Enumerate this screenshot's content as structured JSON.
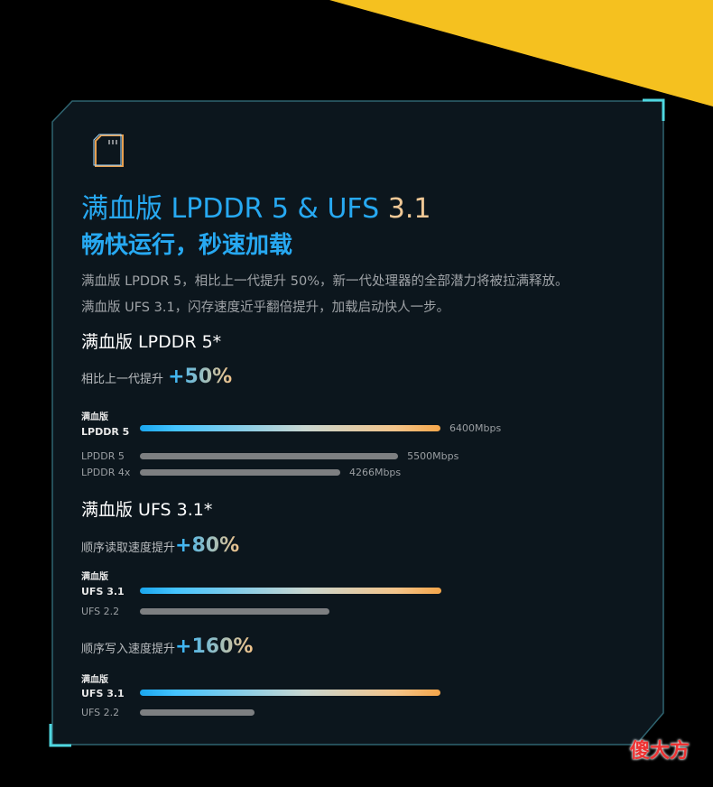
{
  "header": {
    "title": "满血版 LPDDR 5 & UFS",
    "title_version": "3.1",
    "subtitle": "畅快运行，秒速加载",
    "description": [
      "满血版 LPDDR 5，相比上一代提升 50%，新一代处理器的全部潜力将被拉满释放。",
      "满血版 UFS 3.1，闪存速度近乎翻倍提升，加载启动快人一步。"
    ]
  },
  "lpddr": {
    "title": "满血版 LPDDR 5*",
    "gain_label": "相比上一代提升",
    "gain": "+50%",
    "bars": [
      {
        "tag": "满血版",
        "label": "LPDDR 5",
        "value": 6400,
        "value_label": "6400Mbps"
      },
      {
        "label": "LPDDR 5",
        "value": 5500,
        "value_label": "5500Mbps"
      },
      {
        "label": "LPDDR 4x",
        "value": 4266,
        "value_label": "4266Mbps"
      }
    ]
  },
  "ufs": {
    "title": "满血版 UFS 3.1*",
    "groups": [
      {
        "gain_label": "顺序读取速度提升",
        "gain": "+80%",
        "bars": [
          {
            "tag": "满血版",
            "label": "UFS 3.1"
          },
          {
            "label": "UFS 2.2"
          }
        ]
      },
      {
        "gain_label": "顺序写入速度提升",
        "gain": "+160%",
        "bars": [
          {
            "tag": "满血版",
            "label": "UFS 3.1"
          },
          {
            "label": "UFS 2.2"
          }
        ]
      }
    ]
  },
  "watermark": "傻大方"
}
